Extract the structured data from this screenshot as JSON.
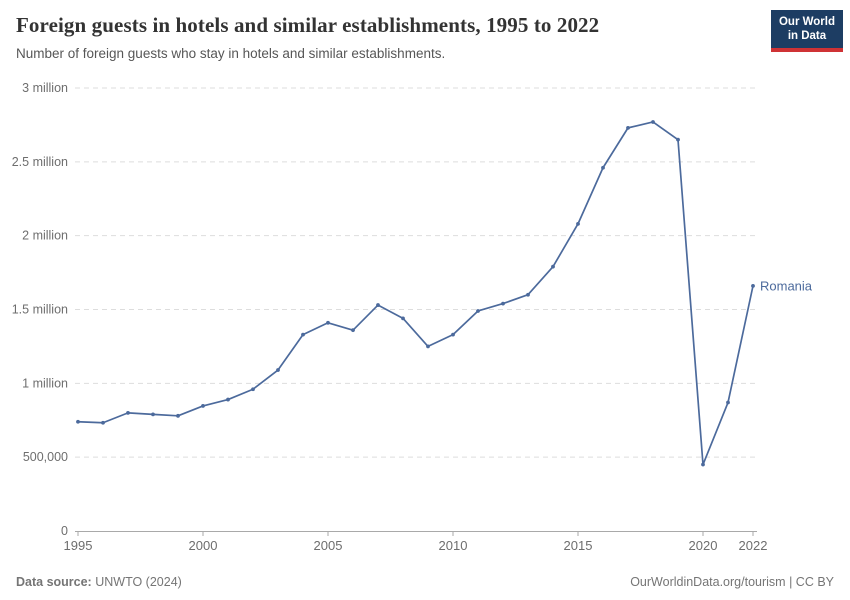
{
  "header": {
    "title": "Foreign guests in hotels and similar establishments, 1995 to 2022",
    "subtitle": "Number of foreign guests who stay in hotels and similar establishments.",
    "logo_line1": "Our World",
    "logo_line2": "in Data"
  },
  "footer": {
    "source_label": "Data source:",
    "source_value": "UNWTO (2024)",
    "url": "OurWorldinData.org/tourism",
    "license": "| CC BY"
  },
  "chart_data": {
    "type": "line",
    "title": "Foreign guests in hotels and similar establishments, 1995 to 2022",
    "subtitle": "Number of foreign guests who stay in hotels and similar establishments.",
    "x": [
      1995,
      1996,
      1997,
      1998,
      1999,
      2000,
      2001,
      2002,
      2003,
      2004,
      2005,
      2006,
      2007,
      2008,
      2009,
      2010,
      2011,
      2012,
      2013,
      2014,
      2015,
      2016,
      2017,
      2018,
      2019,
      2020,
      2021,
      2022
    ],
    "series": [
      {
        "name": "Romania",
        "values": [
          740000,
          733000,
          800000,
          790000,
          780000,
          847000,
          890000,
          960000,
          1090000,
          1330000,
          1410000,
          1360000,
          1530000,
          1440000,
          1250000,
          1330000,
          1490000,
          1540000,
          1600000,
          1790000,
          2080000,
          2460000,
          2730000,
          2770000,
          2650000,
          450000,
          870000,
          1660000
        ]
      }
    ],
    "xlim": [
      1995,
      2022
    ],
    "ylim": [
      0,
      3000000
    ],
    "xticks": [
      1995,
      2000,
      2005,
      2010,
      2015,
      2020,
      2022
    ],
    "yticks": [
      {
        "value": 0,
        "label": "0"
      },
      {
        "value": 500000,
        "label": "500,000"
      },
      {
        "value": 1000000,
        "label": "1 million"
      },
      {
        "value": 1500000,
        "label": "1.5 million"
      },
      {
        "value": 2000000,
        "label": "2 million"
      },
      {
        "value": 2500000,
        "label": "2.5 million"
      },
      {
        "value": 3000000,
        "label": "3 million"
      }
    ],
    "grid": "horizontal dashed",
    "legend": "end-of-line label",
    "colors": {
      "line": "#4C6A9C",
      "grid": "#dddddd",
      "axis": "#a9a9a9",
      "tick_text": "#6e6e6e"
    }
  }
}
